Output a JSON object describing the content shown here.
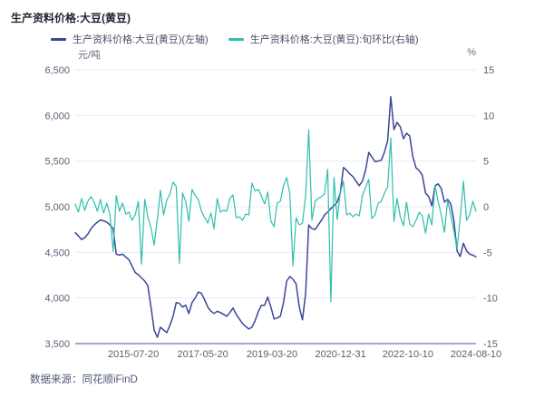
{
  "title": "生产资料价格:大豆(黄豆)",
  "legend": [
    {
      "label": "生产资料价格:大豆(黄豆)(左轴)",
      "color": "#3c4697"
    },
    {
      "label": "生产资料价格:大豆(黄豆):旬环比(右轴)",
      "color": "#2dbfad"
    }
  ],
  "footer": {
    "source_text": "数据来源：同花顺iFinD"
  },
  "chart_data": {
    "type": "line",
    "title": "生产资料价格:大豆(黄豆)",
    "legend_position": "top",
    "grid": true,
    "colors": {
      "grid": "#e9ebf4",
      "axis_line": "#9fa9cc",
      "tick_text": "#5b5f70"
    },
    "left_axis": {
      "unit": "元/吨",
      "min": 3500,
      "max": 6500,
      "ticks": [
        "6,500",
        "6,000",
        "5,500",
        "5,000",
        "4,500",
        "4,000",
        "3,500"
      ]
    },
    "right_axis": {
      "unit": "%",
      "min": -15,
      "max": 15,
      "ticks": [
        "15",
        "10",
        "5",
        "0",
        "-5",
        "-10",
        "-15"
      ]
    },
    "x_ticks": [
      "2015-07-20",
      "2017-05-20",
      "2019-03-20",
      "2020-12-31",
      "2022-10-10",
      "2024-08-10"
    ],
    "x_tick_pos": [
      0.145,
      0.318,
      0.491,
      0.662,
      0.83,
      1.0
    ],
    "x_range": [
      "2014-01",
      "2024-08-10"
    ],
    "x_resolution": "monthly approximation of 旬 (10-day) data",
    "series": [
      {
        "name": "生产资料价格:大豆(黄豆)(左轴)",
        "axis": "left",
        "color": "#3c4697",
        "width": 1.5,
        "data_name": "price-line",
        "values": [
          4715,
          4680,
          4640,
          4660,
          4700,
          4760,
          4800,
          4830,
          4855,
          4845,
          4830,
          4800,
          4760,
          4480,
          4470,
          4480,
          4450,
          4420,
          4350,
          4280,
          4255,
          4220,
          4185,
          4135,
          3900,
          3650,
          3570,
          3680,
          3650,
          3620,
          3700,
          3800,
          3950,
          3940,
          3900,
          3920,
          3830,
          3950,
          4000,
          4065,
          4050,
          3980,
          3900,
          3855,
          3830,
          3855,
          3840,
          3820,
          3800,
          3840,
          3890,
          3820,
          3770,
          3720,
          3690,
          3660,
          3680,
          3750,
          3850,
          3920,
          3920,
          4010,
          3900,
          3770,
          3780,
          3800,
          3950,
          4185,
          4235,
          4205,
          4155,
          3900,
          3760,
          4050,
          4800,
          4760,
          4750,
          4800,
          4850,
          4910,
          4940,
          4980,
          5010,
          5050,
          5150,
          5430,
          5400,
          5360,
          5330,
          5280,
          5230,
          5280,
          5400,
          5595,
          5545,
          5495,
          5500,
          5510,
          5600,
          5725,
          6205,
          5845,
          5925,
          5875,
          5745,
          5805,
          5775,
          5545,
          5425,
          5395,
          5345,
          5150,
          5110,
          5010,
          5230,
          5250,
          5200,
          5050,
          5080,
          5030,
          4850,
          4515,
          4455,
          4600,
          4515,
          4480,
          4470,
          4450
        ]
      },
      {
        "name": "生产资料价格:大豆(黄豆):旬环比(右轴)",
        "axis": "right",
        "color": "#2dbfad",
        "width": 1.2,
        "data_name": "pct-change-line",
        "values": [
          0.3,
          -0.6,
          0.9,
          -0.4,
          0.6,
          1.1,
          0.5,
          -0.5,
          0.8,
          -0.7,
          0.4,
          -0.9,
          -4.9,
          1.2,
          -0.5,
          0.4,
          -0.8,
          -0.6,
          -1.5,
          -0.9,
          0.6,
          -6.3,
          0.8,
          -1.1,
          -2.3,
          -4.2,
          -1.4,
          1.8,
          -0.9,
          0.7,
          1.4,
          2.7,
          2.2,
          -6.2,
          1.5,
          0.6,
          -1.6,
          1.9,
          1.2,
          0.8,
          -0.5,
          -1.2,
          -1.8,
          -0.7,
          -2.4,
          0.9,
          -0.6,
          -0.4,
          -0.5,
          0.9,
          1.3,
          -1.2,
          -1.1,
          -1.5,
          -0.8,
          -0.9,
          2.6,
          1.7,
          1.9,
          1.2,
          0.3,
          1.6,
          -1.6,
          -2.2,
          0.4,
          0.6,
          2.3,
          3.2,
          1.4,
          -6.5,
          -1.2,
          -2.0,
          -1.8,
          1.2,
          8.4,
          -1.5,
          0.6,
          0.9,
          1.1,
          1.4,
          4.1,
          -10.4,
          3.2,
          -1.4,
          1.6,
          2.8,
          -0.9,
          -0.7,
          -1.1,
          -0.8,
          -1.0,
          1.2,
          2.1,
          3.0,
          -1.3,
          -0.9,
          0.4,
          0.6,
          1.5,
          2.2,
          7.5,
          -1.6,
          0.9,
          -1.1,
          -2.1,
          0.5,
          -1.9,
          -2.2,
          -1.5,
          -0.6,
          -1.0,
          -2.9,
          -0.8,
          -2.0,
          2.3,
          0.6,
          -0.9,
          -2.8,
          0.7,
          -0.9,
          -2.6,
          -4.6,
          -1.3,
          2.8,
          -1.5,
          -0.9,
          0.6,
          -0.5
        ]
      }
    ]
  }
}
